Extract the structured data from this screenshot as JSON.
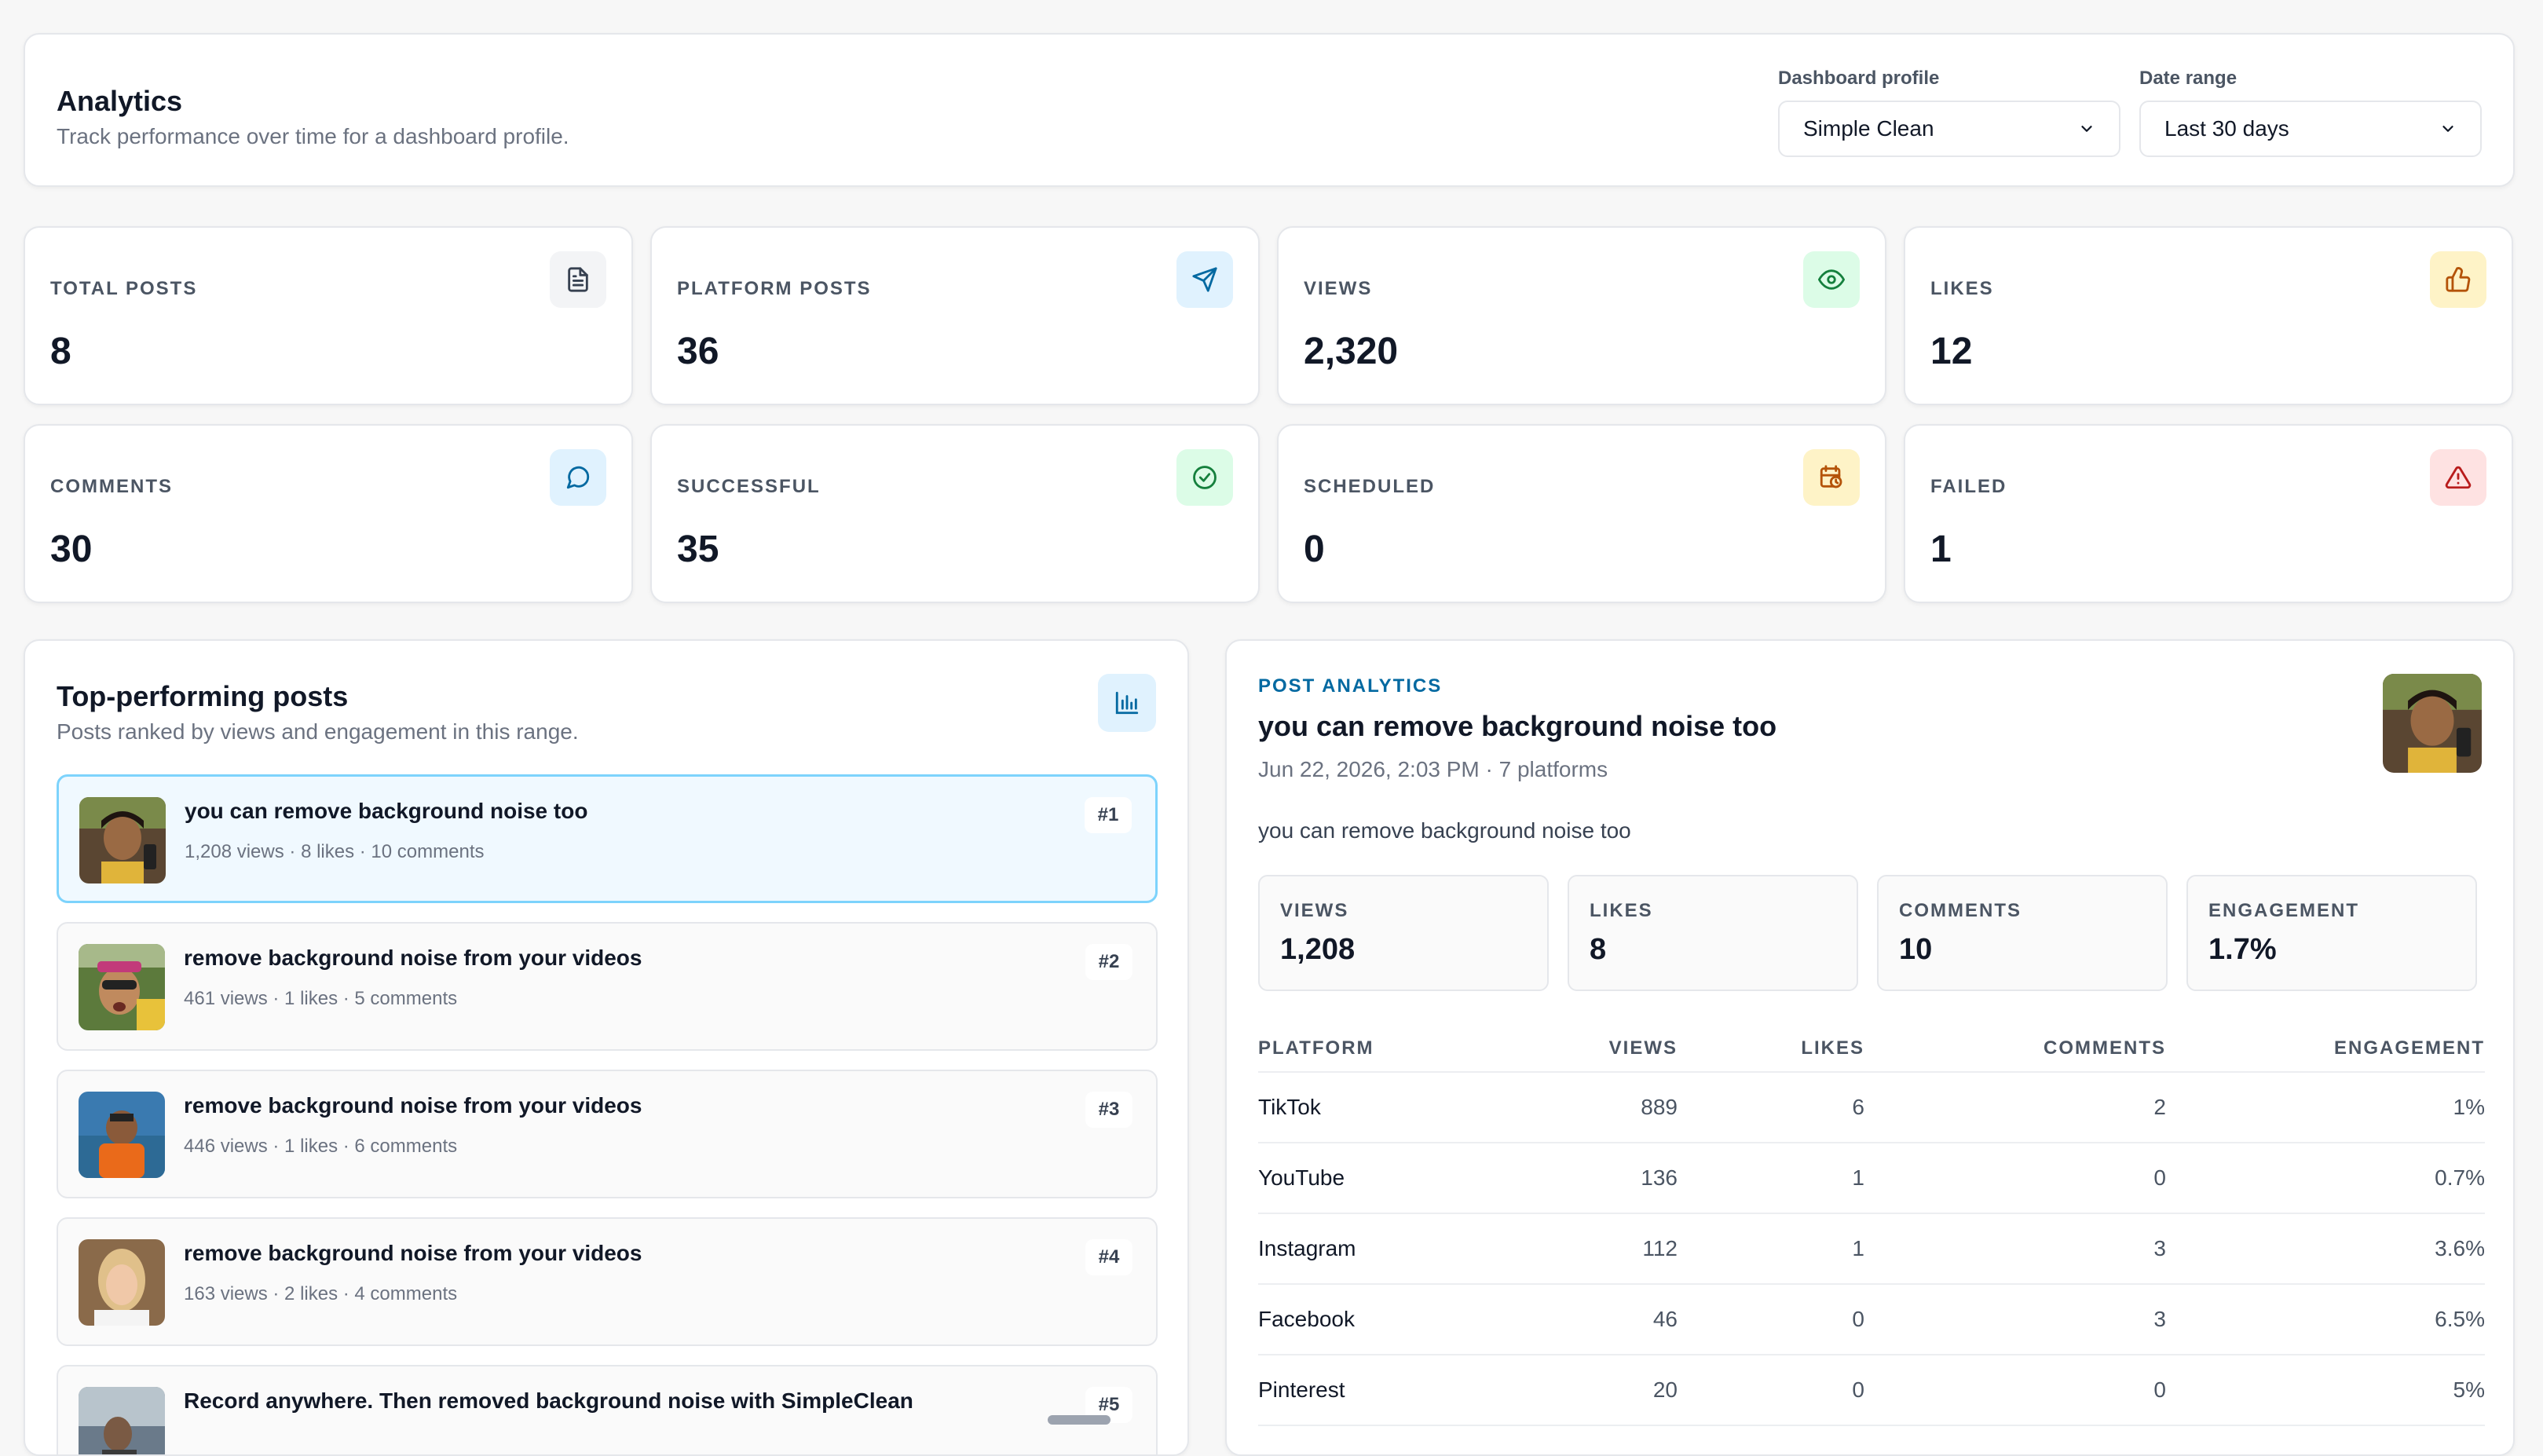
{
  "header": {
    "title": "Analytics",
    "subtitle": "Track performance over time for a dashboard profile.",
    "profile_label": "Dashboard profile",
    "profile_value": "Simple Clean",
    "range_label": "Date range",
    "range_value": "Last 30 days"
  },
  "stats": [
    {
      "label": "TOTAL POSTS",
      "value": "8",
      "icon": "document-icon",
      "bg": "#f3f4f6",
      "fg": "#374151"
    },
    {
      "label": "PLATFORM POSTS",
      "value": "36",
      "icon": "send-icon",
      "bg": "#e0f2fe",
      "fg": "#0369a1"
    },
    {
      "label": "VIEWS",
      "value": "2,320",
      "icon": "eye-icon",
      "bg": "#dcfce7",
      "fg": "#15803d"
    },
    {
      "label": "LIKES",
      "value": "12",
      "icon": "thumbs-up-icon",
      "bg": "#fef3c7",
      "fg": "#b45309"
    },
    {
      "label": "COMMENTS",
      "value": "30",
      "icon": "chat-bubble-icon",
      "bg": "#e0f2fe",
      "fg": "#0369a1"
    },
    {
      "label": "SUCCESSFUL",
      "value": "35",
      "icon": "check-circle-icon",
      "bg": "#dcfce7",
      "fg": "#15803d"
    },
    {
      "label": "SCHEDULED",
      "value": "0",
      "icon": "calendar-clock-icon",
      "bg": "#fef3c7",
      "fg": "#b45309"
    },
    {
      "label": "FAILED",
      "value": "1",
      "icon": "warning-icon",
      "bg": "#fee2e2",
      "fg": "#b91c1c"
    }
  ],
  "top_posts": {
    "title": "Top-performing posts",
    "subtitle": "Posts ranked by views and engagement in this range.",
    "items": [
      {
        "title": "you can remove background noise too",
        "meta": "1,208 views · 8 likes · 10 comments",
        "rank": "#1"
      },
      {
        "title": "remove background noise from your videos",
        "meta": "461 views · 1 likes · 5 comments",
        "rank": "#2"
      },
      {
        "title": "remove background noise from your videos",
        "meta": "446 views · 1 likes · 6 comments",
        "rank": "#3"
      },
      {
        "title": "remove background noise from your videos",
        "meta": "163 views · 2 likes · 4 comments",
        "rank": "#4"
      },
      {
        "title": "Record anywhere. Then removed background noise with SimpleClean",
        "meta": "",
        "rank": "#5"
      }
    ]
  },
  "post_analytics": {
    "eyebrow": "POST ANALYTICS",
    "title": "you can remove background noise too",
    "meta": "Jun 22, 2026, 2:03 PM · 7 platforms",
    "description": "you can remove background noise too",
    "metrics": [
      {
        "label": "VIEWS",
        "value": "1,208"
      },
      {
        "label": "LIKES",
        "value": "8"
      },
      {
        "label": "COMMENTS",
        "value": "10"
      },
      {
        "label": "ENGAGEMENT",
        "value": "1.7%"
      }
    ],
    "table": {
      "headers": [
        "PLATFORM",
        "VIEWS",
        "LIKES",
        "COMMENTS",
        "ENGAGEMENT"
      ],
      "rows": [
        [
          "TikTok",
          "889",
          "6",
          "2",
          "1%"
        ],
        [
          "YouTube",
          "136",
          "1",
          "0",
          "0.7%"
        ],
        [
          "Instagram",
          "112",
          "1",
          "3",
          "3.6%"
        ],
        [
          "Facebook",
          "46",
          "0",
          "3",
          "6.5%"
        ],
        [
          "Pinterest",
          "20",
          "0",
          "0",
          "5%"
        ]
      ]
    }
  }
}
